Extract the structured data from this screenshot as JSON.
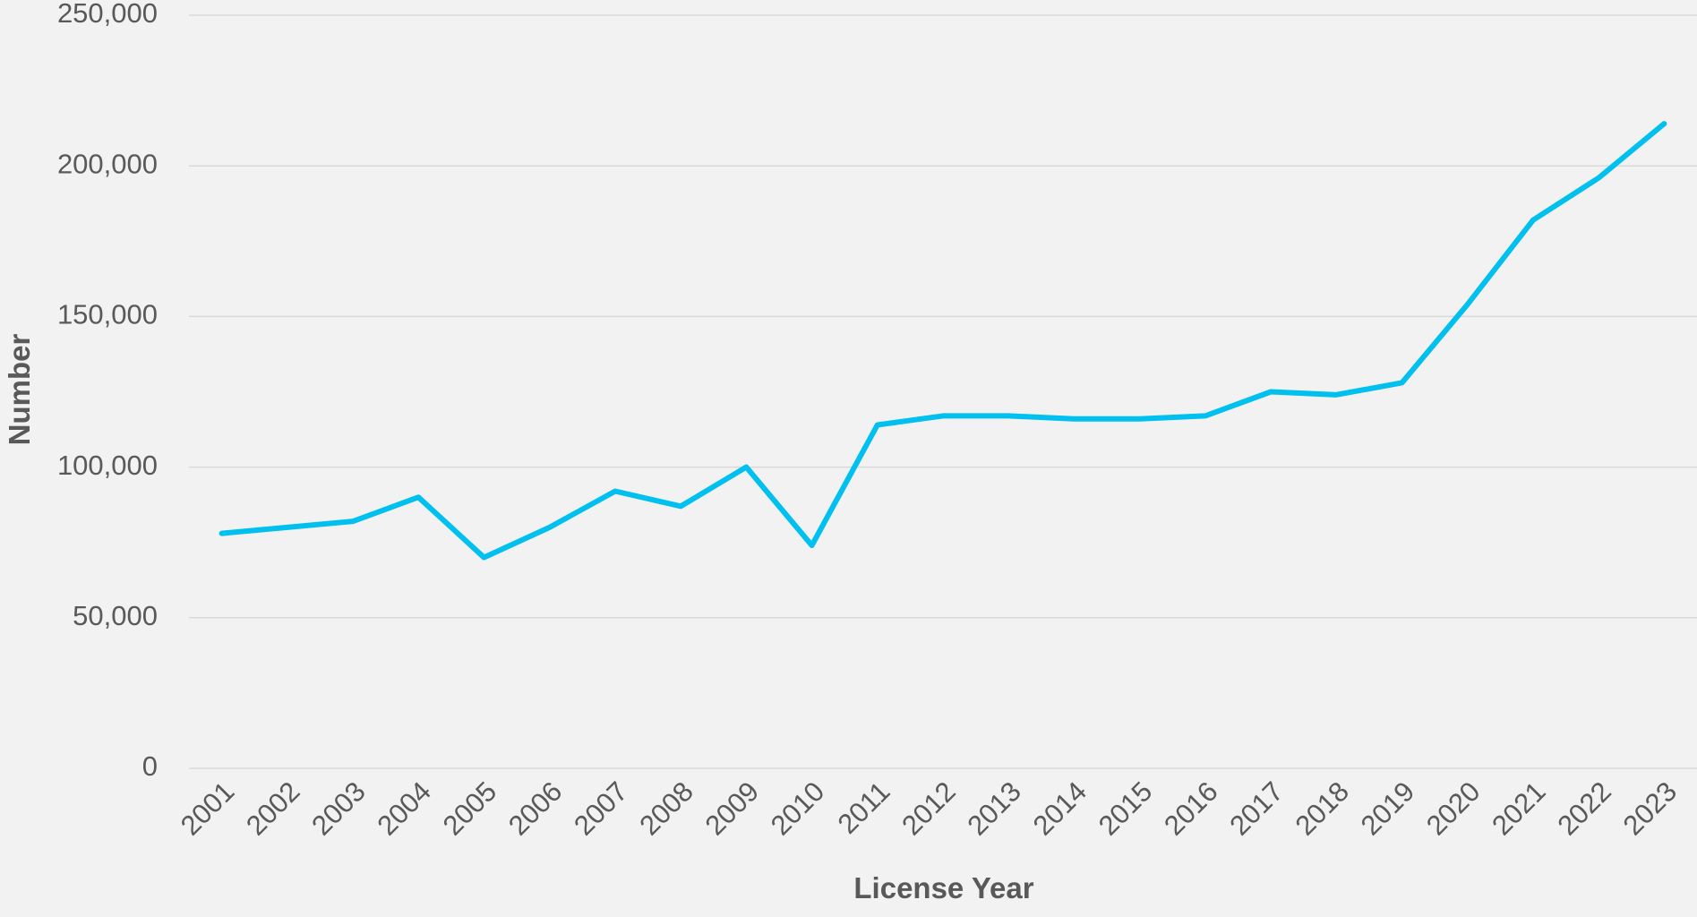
{
  "chart_data": {
    "type": "line",
    "x_label": "License Year",
    "y_label": "Number",
    "categories": [
      "2001",
      "2002",
      "2003",
      "2004",
      "2005",
      "2006",
      "2007",
      "2008",
      "2009",
      "2010",
      "2011",
      "2012",
      "2013",
      "2014",
      "2015",
      "2016",
      "2017",
      "2018",
      "2019",
      "2020",
      "2021",
      "2022",
      "2023"
    ],
    "series": [
      {
        "color": "#00c0f0",
        "values": [
          78000,
          80000,
          82000,
          90000,
          70000,
          80000,
          92000,
          87000,
          100000,
          74000,
          114000,
          117000,
          117000,
          116000,
          116000,
          117000,
          125000,
          124000,
          128000,
          154000,
          182000,
          196000,
          214000
        ]
      }
    ],
    "ylim": [
      0,
      250000
    ],
    "yticks": [
      0,
      {
        "value": 50000,
        "label": "50,000"
      },
      {
        "value": 100000,
        "label": "100,000"
      },
      {
        "value": 150000,
        "label": "150,000"
      },
      {
        "value": 200000,
        "label": "200,000"
      },
      {
        "value": 250000,
        "label": "250,000"
      }
    ],
    "grid": true
  }
}
